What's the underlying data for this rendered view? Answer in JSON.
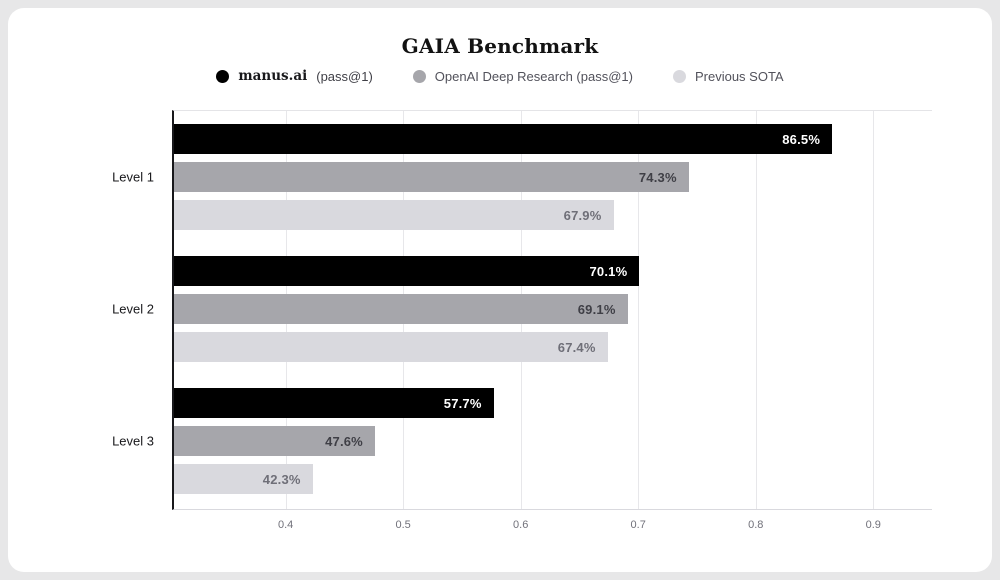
{
  "page": {
    "background_color": "#e7e7e8",
    "card_color": "#ffffff"
  },
  "chart_data": {
    "type": "bar",
    "orientation": "horizontal",
    "title": "GAIA Benchmark",
    "categories": [
      "Level 1",
      "Level 2",
      "Level 3"
    ],
    "series": [
      {
        "name": "manus.ai (pass@1)",
        "color": "#000000",
        "label_color": "#ffffff",
        "values": [
          0.865,
          0.701,
          0.577
        ],
        "labels": [
          "86.5%",
          "70.1%",
          "57.7%"
        ]
      },
      {
        "name": "OpenAI Deep Research (pass@1)",
        "color": "#a6a6ab",
        "label_color": "#3f3f46",
        "values": [
          0.743,
          0.691,
          0.476
        ],
        "labels": [
          "74.3%",
          "69.1%",
          "47.6%"
        ]
      },
      {
        "name": "Previous SOTA",
        "color": "#d9d9de",
        "label_color": "#6f6f78",
        "values": [
          0.679,
          0.674,
          0.423
        ],
        "labels": [
          "67.9%",
          "67.4%",
          "42.3%"
        ]
      }
    ],
    "x_ticks": [
      0.4,
      0.5,
      0.6,
      0.7,
      0.8,
      0.9
    ],
    "x_tick_labels": [
      "0.4",
      "0.5",
      "0.6",
      "0.7",
      "0.8",
      "0.9"
    ],
    "xlim": [
      0.305,
      0.95
    ],
    "grid": true,
    "legend_position": "top-center"
  },
  "legend": {
    "items": [
      {
        "name": "manus.ai",
        "suffix": "(pass@1)",
        "marker_color": "#000000"
      },
      {
        "name": "OpenAI Deep Research (pass@1)",
        "suffix": "",
        "marker_color": "#a6a6ab"
      },
      {
        "name": "Previous SOTA",
        "suffix": "",
        "marker_color": "#d9d9de"
      }
    ]
  }
}
